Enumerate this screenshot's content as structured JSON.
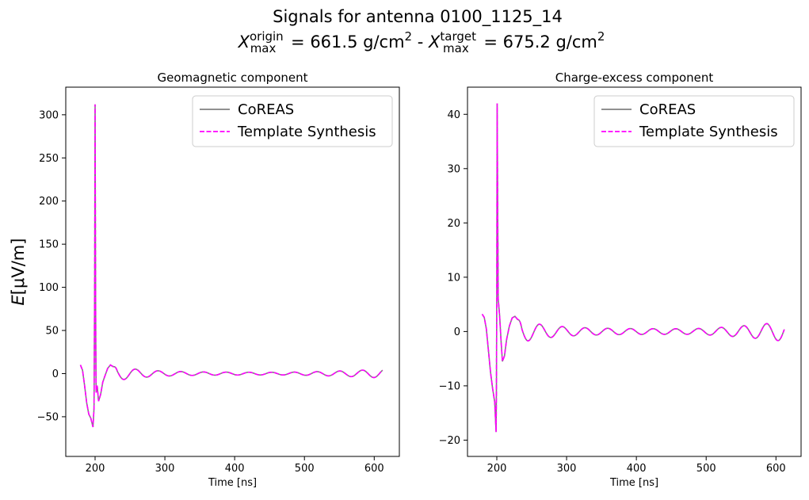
{
  "figure": {
    "title_line1": "Signals for antenna 0100_1125_14",
    "xmax_origin_label": "origin",
    "xmax_origin_value": " =  661.5 g/cm",
    "xmax_sep": " -  ",
    "xmax_target_label": "target",
    "xmax_target_value": " =  675.2 g/cm",
    "xmax_symbol": "X",
    "xmax_sub": "max",
    "superscript_two": "2",
    "ylabel_e": "E",
    "ylabel_unit": "[μV/m]"
  },
  "chart_data": [
    {
      "type": "line",
      "title": "Geomagnetic component",
      "xlabel": "Time [ns]",
      "ylabel": "E[μV/m]",
      "xlim": [
        158,
        636
      ],
      "ylim": [
        -96,
        332
      ],
      "xticks": [
        200,
        300,
        400,
        500,
        600
      ],
      "yticks": [
        -50,
        0,
        50,
        100,
        150,
        200,
        250,
        300
      ],
      "legend": "top-right",
      "series": [
        {
          "name": "CoREAS",
          "color": "#808080",
          "style": "solid"
        },
        {
          "name": "Template Synthesis",
          "color": "#ff00ff",
          "style": "dashed"
        }
      ],
      "signal": {
        "t_start": 179,
        "t_end": 612,
        "peak_t": 200,
        "points": [
          [
            179,
            10
          ],
          [
            182,
            4
          ],
          [
            185,
            -14
          ],
          [
            188,
            -34
          ],
          [
            191,
            -47
          ],
          [
            194,
            -52
          ],
          [
            197,
            -62
          ],
          [
            198.5,
            -40
          ],
          [
            199.5,
            120
          ],
          [
            200,
            312
          ],
          [
            200.8,
            60
          ],
          [
            201.5,
            -22
          ],
          [
            203,
            -14
          ],
          [
            205,
            -32
          ],
          [
            208,
            -24
          ],
          [
            211,
            -10
          ],
          [
            214,
            -3
          ],
          [
            218,
            6
          ],
          [
            222,
            10
          ],
          [
            226,
            8
          ]
        ],
        "oscillation": {
          "period": 32.5,
          "phase_t": 225.5,
          "decay_start": 9,
          "min_amp": 1.5,
          "end_amp": 5,
          "grow_from": 460
        }
      }
    },
    {
      "type": "line",
      "title": "Charge-excess component",
      "xlabel": "Time [ns]",
      "ylabel": "",
      "xlim": [
        158,
        636
      ],
      "ylim": [
        -23,
        45
      ],
      "xticks": [
        200,
        300,
        400,
        500,
        600
      ],
      "yticks": [
        -20,
        -10,
        0,
        10,
        20,
        30,
        40
      ],
      "legend": "top-right",
      "series": [
        {
          "name": "CoREAS",
          "color": "#808080",
          "style": "solid"
        },
        {
          "name": "Template Synthesis",
          "color": "#ff00ff",
          "style": "dashed"
        }
      ],
      "signal": {
        "t_start": 179,
        "t_end": 612,
        "peak_t": 201,
        "points": [
          [
            179,
            3.2
          ],
          [
            182,
            2.6
          ],
          [
            185,
            0.5
          ],
          [
            188,
            -3.5
          ],
          [
            191,
            -7.5
          ],
          [
            194,
            -10.5
          ],
          [
            197,
            -13
          ],
          [
            199,
            -18.5
          ],
          [
            199.8,
            -5
          ],
          [
            200.5,
            42
          ],
          [
            201.3,
            22
          ],
          [
            202,
            6
          ],
          [
            204,
            3
          ],
          [
            206,
            -1.5
          ],
          [
            208,
            -5.5
          ],
          [
            211,
            -4.5
          ],
          [
            214,
            -1.5
          ],
          [
            218,
            1
          ],
          [
            222,
            2.5
          ],
          [
            226,
            2.8
          ],
          [
            230,
            2.2
          ]
        ],
        "oscillation": {
          "period": 32.5,
          "phase_t": 229,
          "decay_start": 2.2,
          "min_amp": 0.5,
          "end_amp": 1.8,
          "grow_from": 470
        }
      }
    }
  ]
}
